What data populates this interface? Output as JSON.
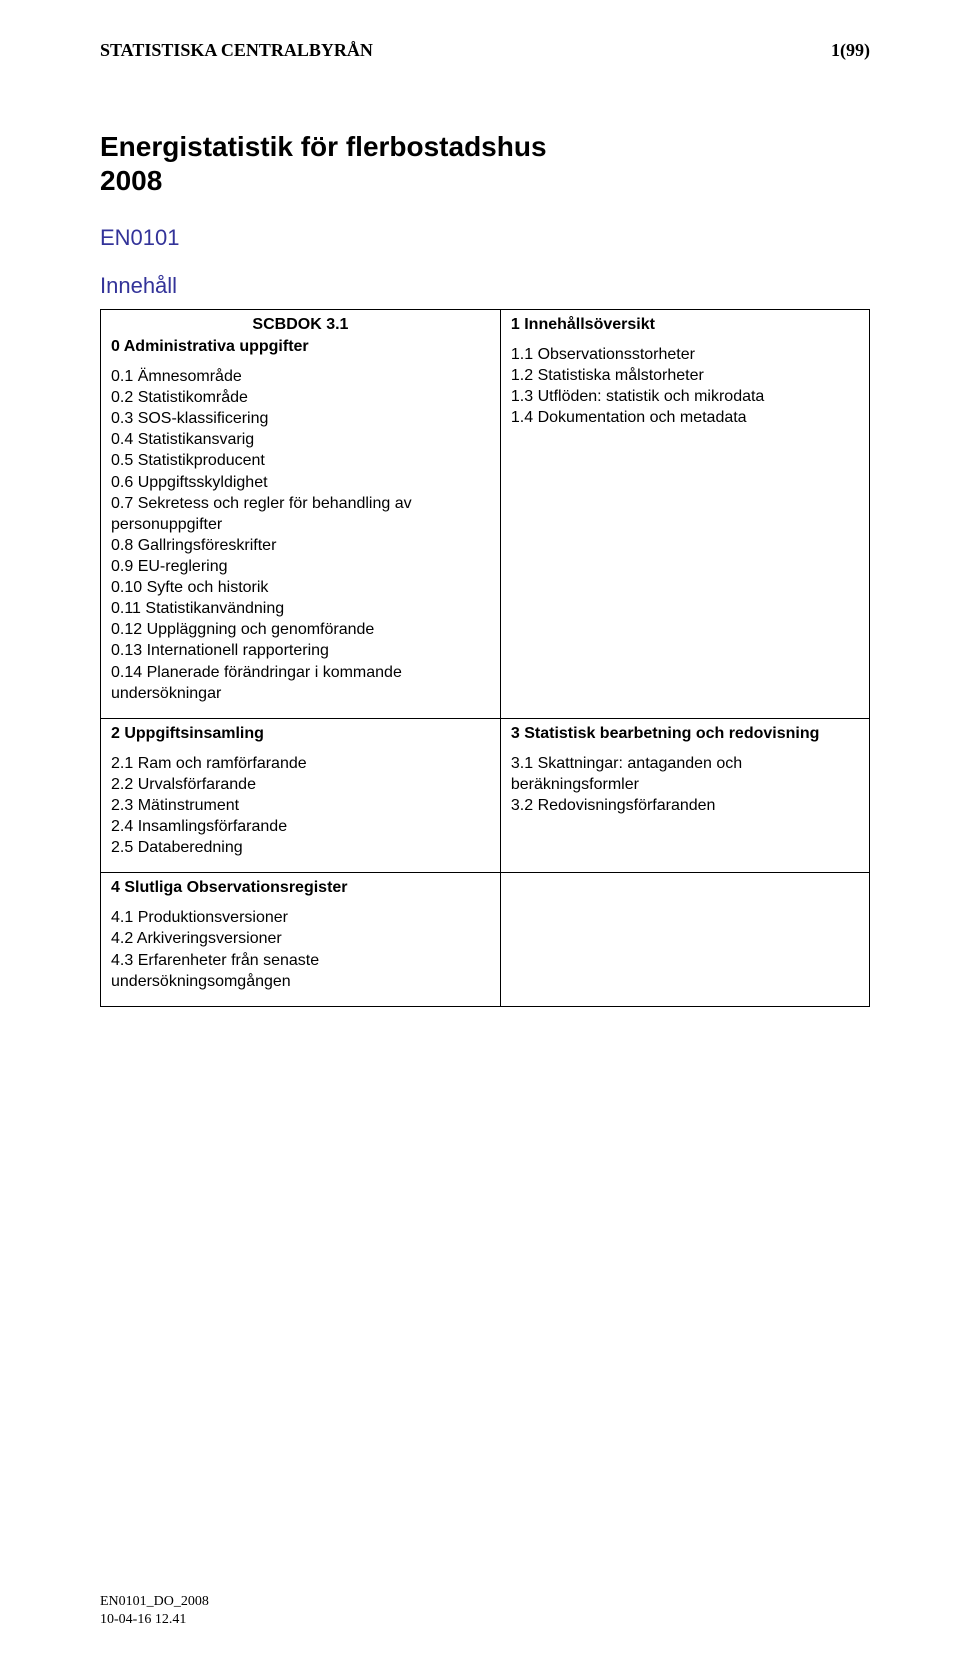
{
  "header": {
    "org": "STATISTISKA CENTRALBYRÅN",
    "pageno": "1(99)"
  },
  "title_line1": "Energistatistik för flerbostadshus",
  "title_line2": "2008",
  "doc_code": "EN0101",
  "innehall_label": "Innehåll",
  "scbdok": "SCBDOK 3.1",
  "toc": {
    "cell_0": {
      "title": "0  Administrativa uppgifter",
      "items": [
        "0.1  Ämnesområde",
        "0.2  Statistikområde",
        "0.3  SOS-klassificering",
        "0.4  Statistikansvarig",
        "0.5  Statistikproducent",
        "0.6  Uppgiftsskyldighet",
        "0.7  Sekretess och regler för behandling av personuppgifter",
        "0.8  Gallringsföreskrifter",
        "0.9  EU-reglering",
        "0.10  Syfte och historik",
        "0.11  Statistikanvändning",
        "0.12  Uppläggning och genomförande",
        "0.13  Internationell rapportering",
        "0.14  Planerade förändringar i kommande undersökningar"
      ]
    },
    "cell_1": {
      "title": "1  Innehållsöversikt",
      "items": [
        "1.1  Observationsstorheter",
        "1.2  Statistiska målstorheter",
        "1.3  Utflöden: statistik och mikrodata",
        "1.4  Dokumentation och metadata"
      ]
    },
    "cell_2": {
      "title": "2  Uppgiftsinsamling",
      "items": [
        "2.1  Ram och ramförfarande",
        "2.2  Urvalsförfarande",
        "2.3  Mätinstrument",
        "2.4  Insamlingsförfarande",
        "2.5  Databeredning"
      ]
    },
    "cell_3": {
      "title": "3  Statistisk bearbetning och redovisning",
      "items": [
        "3.1  Skattningar: antaganden och beräkningsformler",
        "3.2  Redovisningsförfaranden"
      ]
    },
    "cell_4": {
      "title": "4  Slutliga Observationsregister",
      "items": [
        "4.1  Produktionsversioner",
        "4.2  Arkiveringsversioner",
        "4.3  Erfarenheter från senaste undersökningsomgången"
      ]
    }
  },
  "footer": {
    "line1": "EN0101_DO_2008",
    "line2": "10-04-16 12.41"
  },
  "colors": {
    "heading_blue": "#333399",
    "text": "#000000",
    "background": "#ffffff",
    "border": "#000000"
  }
}
